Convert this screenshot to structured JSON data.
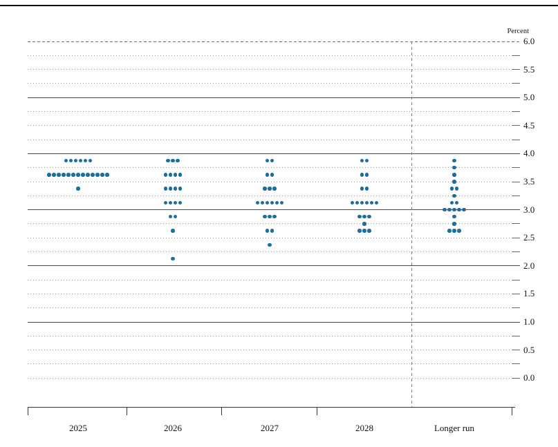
{
  "chart_data": {
    "type": "scatter",
    "subtype": "fomc-dot-plot",
    "title": "",
    "ylabel": "Percent",
    "xlabel": "",
    "legend": "none",
    "grid": "dotted quarter-percent lines, solid integer lines",
    "y_axis": {
      "min": 0.0,
      "max": 6.0,
      "label_step": 0.5,
      "grid_step": 0.25,
      "solid_line_values": [
        1.0,
        2.0,
        3.0,
        4.0,
        5.0
      ],
      "dashed_line_values": [
        6.0
      ],
      "tick_labels": [
        "6.0",
        "5.5",
        "5.0",
        "4.5",
        "4.0",
        "3.5",
        "3.0",
        "2.5",
        "2.0",
        "1.5",
        "1.0",
        "0.5",
        "0.0"
      ],
      "tick_values": [
        6.0,
        5.5,
        5.0,
        4.5,
        4.0,
        3.5,
        3.0,
        2.5,
        2.0,
        1.5,
        1.0,
        0.5,
        0.0
      ]
    },
    "categories": [
      "2025",
      "2026",
      "2027",
      "2028",
      "Longer run"
    ],
    "separator_before_category": "Longer run",
    "series": [
      {
        "category": "2025",
        "dots": [
          {
            "rate": 3.875,
            "count": 6
          },
          {
            "rate": 3.625,
            "count": 13
          },
          {
            "rate": 3.375,
            "count": 1
          }
        ]
      },
      {
        "category": "2026",
        "dots": [
          {
            "rate": 3.875,
            "count": 3
          },
          {
            "rate": 3.625,
            "count": 4
          },
          {
            "rate": 3.375,
            "count": 4
          },
          {
            "rate": 3.125,
            "count": 4
          },
          {
            "rate": 2.875,
            "count": 2
          },
          {
            "rate": 2.625,
            "count": 1
          },
          {
            "rate": 2.125,
            "count": 1
          }
        ]
      },
      {
        "category": "2027",
        "dots": [
          {
            "rate": 3.875,
            "count": 2
          },
          {
            "rate": 3.625,
            "count": 2
          },
          {
            "rate": 3.375,
            "count": 3
          },
          {
            "rate": 3.125,
            "count": 6
          },
          {
            "rate": 2.875,
            "count": 3
          },
          {
            "rate": 2.625,
            "count": 2
          },
          {
            "rate": 2.375,
            "count": 1
          }
        ]
      },
      {
        "category": "2028",
        "dots": [
          {
            "rate": 3.875,
            "count": 2
          },
          {
            "rate": 3.625,
            "count": 2
          },
          {
            "rate": 3.375,
            "count": 2
          },
          {
            "rate": 3.125,
            "count": 6
          },
          {
            "rate": 2.875,
            "count": 3
          },
          {
            "rate": 2.75,
            "count": 1
          },
          {
            "rate": 2.625,
            "count": 3
          }
        ]
      },
      {
        "category": "Longer run",
        "dots": [
          {
            "rate": 3.875,
            "count": 1
          },
          {
            "rate": 3.75,
            "count": 1
          },
          {
            "rate": 3.625,
            "count": 1
          },
          {
            "rate": 3.5,
            "count": 1
          },
          {
            "rate": 3.375,
            "count": 2
          },
          {
            "rate": 3.25,
            "count": 1
          },
          {
            "rate": 3.125,
            "count": 2
          },
          {
            "rate": 3.0,
            "count": 5
          },
          {
            "rate": 2.875,
            "count": 1
          },
          {
            "rate": 2.75,
            "count": 1
          },
          {
            "rate": 2.625,
            "count": 3
          }
        ]
      }
    ],
    "colors": {
      "dot": "#1b6e9d",
      "dotted_grid": "#8f8f8f",
      "solid_grid": "#4a4a4a",
      "separator": "#7a7a7a",
      "text": "#111111",
      "top_rule": "#000000"
    }
  }
}
